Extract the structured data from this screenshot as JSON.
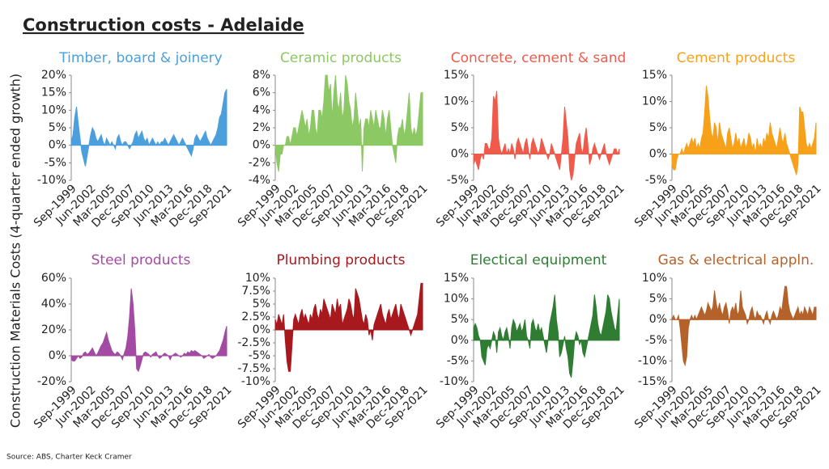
{
  "title": "Construction costs - Adelaide",
  "ylabel": "Construction Materials Costs (4-quarter ended growth)",
  "source": "Source: ABS, Charter Keck Cramer",
  "categories": [
    "Sep-1999",
    null,
    null,
    null,
    null,
    null,
    null,
    null,
    null,
    null,
    null,
    "Jun-2002",
    null,
    null,
    null,
    null,
    null,
    null,
    null,
    null,
    null,
    null,
    "Mar-2005",
    null,
    null,
    null,
    null,
    null,
    null,
    null,
    null,
    null,
    null,
    "Dec-2007",
    null,
    null,
    null,
    null,
    null,
    null,
    null,
    null,
    null,
    null,
    "Sep-2010",
    null,
    null,
    null,
    null,
    null,
    null,
    null,
    null,
    null,
    null,
    "Jun-2013",
    null,
    null,
    null,
    null,
    null,
    null,
    null,
    null,
    null,
    null,
    "Mar-2016",
    null,
    null,
    null,
    null,
    null,
    null,
    null,
    null,
    null,
    null,
    "Dec-2018",
    null,
    null,
    null,
    null,
    null,
    null,
    null,
    null,
    null,
    null,
    "Sep-2021"
  ],
  "chart_data": [
    {
      "type": "area",
      "title": "Timber, board & joinery",
      "color": "#4a9fdc",
      "ylim": [
        -10,
        20
      ],
      "yticks": [
        {
          "value": -10,
          "label": "-10%"
        },
        {
          "value": -5,
          "label": "-5%"
        },
        {
          "value": 0,
          "label": "0%"
        },
        {
          "value": 5,
          "label": "5%"
        },
        {
          "value": 10,
          "label": "10%"
        },
        {
          "value": 15,
          "label": "15%"
        },
        {
          "value": 20,
          "label": "20%"
        }
      ],
      "values": [
        1,
        3,
        8,
        11,
        6,
        2,
        -2,
        -4,
        -6,
        -3,
        0,
        3,
        5,
        4,
        2,
        1,
        2,
        3,
        1,
        0,
        2,
        1,
        0,
        1,
        0,
        -1,
        2,
        3,
        1,
        0,
        1,
        1,
        0,
        -1,
        0,
        1,
        3,
        4,
        2,
        3,
        4,
        2,
        1,
        2,
        0,
        1,
        2,
        1,
        0,
        1,
        0,
        1,
        1,
        2,
        1,
        0,
        1,
        2,
        3,
        2,
        1,
        0,
        1,
        2,
        1,
        0,
        -1,
        -2,
        -3,
        -1,
        2,
        3,
        2,
        1,
        2,
        3,
        4,
        2,
        1,
        0,
        1,
        2,
        3,
        5,
        8,
        9,
        12,
        15,
        16
      ]
    },
    {
      "type": "area",
      "title": "Ceramic products",
      "color": "#8cc864",
      "ylim": [
        -4,
        8
      ],
      "yticks": [
        {
          "value": -4,
          "label": "-4%"
        },
        {
          "value": -2,
          "label": "-2%"
        },
        {
          "value": 0,
          "label": "0%"
        },
        {
          "value": 2,
          "label": "2%"
        },
        {
          "value": 4,
          "label": "4%"
        },
        {
          "value": 6,
          "label": "6%"
        },
        {
          "value": 8,
          "label": "8%"
        }
      ],
      "values": [
        0,
        -2,
        -3,
        -1,
        -1,
        0,
        0,
        1,
        1,
        0,
        1,
        2,
        2,
        1,
        2,
        3,
        4,
        3,
        2,
        3,
        1,
        2,
        4,
        4,
        2,
        1,
        4,
        4,
        3,
        5,
        8,
        8,
        6,
        7,
        3,
        6,
        8,
        5,
        4,
        6,
        3,
        4,
        8,
        7,
        5,
        4,
        2,
        3,
        6,
        4,
        2,
        3,
        -3,
        2,
        3,
        3,
        2,
        4,
        3,
        2,
        4,
        3,
        2,
        2,
        4,
        3,
        1,
        3,
        4,
        2,
        0,
        -1,
        -2,
        1,
        2,
        2,
        3,
        1,
        2,
        4,
        6,
        2,
        1,
        2,
        1,
        2,
        4,
        6,
        6
      ]
    },
    {
      "type": "area",
      "title": "Concrete, cement & sand",
      "color": "#f05a4a",
      "ylim": [
        -5,
        15
      ],
      "yticks": [
        {
          "value": -5,
          "label": "-5%"
        },
        {
          "value": 0,
          "label": "0%"
        },
        {
          "value": 5,
          "label": "5%"
        },
        {
          "value": 10,
          "label": "10%"
        },
        {
          "value": 15,
          "label": "15%"
        }
      ],
      "values": [
        -2,
        -1,
        -2,
        -3,
        -1,
        0,
        -1,
        2,
        2,
        1,
        1,
        3,
        11,
        10,
        12,
        3,
        1,
        0,
        1,
        2,
        0,
        1,
        0,
        2,
        1,
        -1,
        2,
        3,
        2,
        1,
        0,
        2,
        3,
        1,
        -1,
        2,
        3,
        2,
        1,
        0,
        1,
        3,
        2,
        1,
        0,
        -1,
        0,
        2,
        1,
        0,
        -1,
        -2,
        -3,
        0,
        3,
        9,
        6,
        3,
        -3,
        -5,
        -4,
        -1,
        2,
        3,
        4,
        1,
        0,
        3,
        5,
        2,
        -2,
        -1,
        1,
        2,
        1,
        0,
        -1,
        0,
        1,
        2,
        0,
        -1,
        -2,
        -1,
        0,
        1,
        1,
        0,
        1
      ]
    },
    {
      "type": "area",
      "title": "Cement products",
      "color": "#f7a11a",
      "ylim": [
        -5,
        15
      ],
      "yticks": [
        {
          "value": -5,
          "label": "-5%"
        },
        {
          "value": 0,
          "label": "0%"
        },
        {
          "value": 5,
          "label": "5%"
        },
        {
          "value": 10,
          "label": "10%"
        },
        {
          "value": 15,
          "label": "15%"
        }
      ],
      "values": [
        -2,
        -3,
        -3,
        -1,
        0,
        0,
        1,
        0,
        1,
        2,
        1,
        2,
        3,
        2,
        3,
        1,
        2,
        1,
        3,
        4,
        8,
        13,
        11,
        7,
        4,
        3,
        6,
        5,
        2,
        6,
        4,
        3,
        2,
        1,
        4,
        5,
        3,
        1,
        2,
        4,
        2,
        3,
        1,
        2,
        3,
        1,
        2,
        4,
        3,
        1,
        2,
        0,
        3,
        1,
        2,
        1,
        3,
        2,
        4,
        3,
        6,
        4,
        3,
        2,
        1,
        3,
        5,
        3,
        2,
        4,
        2,
        1,
        0,
        -1,
        -2,
        -3,
        -4,
        -2,
        9,
        8,
        8,
        5,
        2,
        1,
        2,
        1,
        2,
        3,
        6
      ]
    },
    {
      "type": "area",
      "title": "Steel products",
      "color": "#a34ba3",
      "ylim": [
        -20,
        60
      ],
      "yticks": [
        {
          "value": -20,
          "label": "-20%"
        },
        {
          "value": 0,
          "label": "0%"
        },
        {
          "value": 20,
          "label": "20%"
        },
        {
          "value": 40,
          "label": "40%"
        },
        {
          "value": 60,
          "label": "60%"
        }
      ],
      "values": [
        -3,
        -4,
        -4,
        -2,
        0,
        -2,
        -1,
        2,
        3,
        1,
        2,
        4,
        6,
        3,
        0,
        2,
        5,
        8,
        10,
        14,
        18,
        12,
        8,
        4,
        2,
        1,
        3,
        2,
        0,
        -3,
        2,
        6,
        15,
        30,
        52,
        40,
        20,
        -10,
        -12,
        -8,
        -3,
        2,
        3,
        2,
        1,
        -1,
        1,
        2,
        3,
        0,
        -2,
        -1,
        1,
        2,
        1,
        0,
        -3,
        0,
        1,
        2,
        1,
        0,
        -1,
        0,
        2,
        1,
        3,
        2,
        4,
        3,
        4,
        3,
        2,
        1,
        0,
        -2,
        -1,
        0,
        1,
        -1,
        -2,
        -1,
        0,
        2,
        4,
        8,
        12,
        18,
        23
      ]
    },
    {
      "type": "area",
      "title": "Plumbing products",
      "color": "#a8191e",
      "ylim": [
        -10,
        10
      ],
      "yticks": [
        {
          "value": -10,
          "label": "-10%"
        },
        {
          "value": -7.5,
          "label": "-7.5%"
        },
        {
          "value": -5,
          "label": "-5%"
        },
        {
          "value": -2.5,
          "label": "-2.5%"
        },
        {
          "value": 0,
          "label": "0%"
        },
        {
          "value": 2.5,
          "label": "2.5%"
        },
        {
          "value": 5,
          "label": "5%"
        },
        {
          "value": 7.5,
          "label": "7.5%"
        },
        {
          "value": 10,
          "label": "10%"
        }
      ],
      "values": [
        2,
        1,
        3,
        2,
        1,
        3,
        -2,
        -6,
        -8,
        -8,
        -3,
        2,
        3,
        2,
        1,
        3,
        4,
        2,
        3,
        2,
        1,
        3,
        2,
        4,
        5,
        3,
        2,
        4,
        3,
        6,
        5,
        4,
        3,
        2,
        5,
        4,
        3,
        6,
        4,
        5,
        1,
        2,
        3,
        4,
        6,
        5,
        3,
        2,
        8,
        7,
        6,
        4,
        2,
        1,
        3,
        2,
        -1,
        0,
        -2,
        1,
        2,
        3,
        4,
        5,
        3,
        2,
        1,
        3,
        4,
        2,
        3,
        4,
        5,
        3,
        2,
        5,
        4,
        3,
        2,
        1,
        0,
        -1,
        0,
        1,
        2,
        3,
        6,
        9,
        9
      ]
    },
    {
      "type": "area",
      "title": "Electical equipment",
      "color": "#2e7d32",
      "ylim": [
        -10,
        15
      ],
      "yticks": [
        {
          "value": -10,
          "label": "-10%"
        },
        {
          "value": -5,
          "label": "-5%"
        },
        {
          "value": 0,
          "label": "0%"
        },
        {
          "value": 5,
          "label": "5%"
        },
        {
          "value": 10,
          "label": "10%"
        },
        {
          "value": 15,
          "label": "15%"
        }
      ],
      "values": [
        3,
        4,
        3,
        1,
        0,
        -4,
        -5,
        -6,
        -2,
        -1,
        -2,
        0,
        2,
        1,
        -3,
        2,
        3,
        1,
        0,
        2,
        3,
        1,
        -2,
        3,
        5,
        4,
        2,
        3,
        4,
        2,
        3,
        5,
        1,
        0,
        -2,
        4,
        5,
        3,
        2,
        4,
        2,
        3,
        1,
        -1,
        -3,
        0,
        4,
        6,
        8,
        11,
        5,
        2,
        -4,
        -3,
        -1,
        1,
        -2,
        -4,
        -8,
        -9,
        -5,
        0,
        2,
        1,
        -1,
        0,
        -3,
        -4,
        -2,
        0,
        2,
        4,
        6,
        11,
        8,
        4,
        2,
        1,
        3,
        5,
        7,
        11,
        10,
        7,
        5,
        3,
        2,
        6,
        10
      ]
    },
    {
      "type": "area",
      "title": "Gas & electrical appln.",
      "color": "#b5622a",
      "ylim": [
        -15,
        10
      ],
      "yticks": [
        {
          "value": -15,
          "label": "-15%"
        },
        {
          "value": -10,
          "label": "-10%"
        },
        {
          "value": -5,
          "label": "-5%"
        },
        {
          "value": 0,
          "label": "0%"
        },
        {
          "value": 5,
          "label": "5%"
        },
        {
          "value": 10,
          "label": "10%"
        }
      ],
      "values": [
        0,
        1,
        0,
        0,
        1,
        -2,
        -6,
        -10,
        -11,
        -9,
        -2,
        0,
        1,
        0,
        1,
        0,
        1,
        2,
        3,
        2,
        1,
        2,
        4,
        3,
        2,
        3,
        7,
        4,
        2,
        4,
        2,
        1,
        3,
        4,
        2,
        -1,
        2,
        3,
        2,
        4,
        1,
        2,
        7,
        3,
        2,
        1,
        -1,
        0,
        2,
        3,
        1,
        0,
        2,
        1,
        1,
        0,
        -1,
        1,
        2,
        0,
        -1,
        1,
        2,
        1,
        0,
        1,
        3,
        2,
        5,
        8,
        8,
        4,
        2,
        1,
        0,
        1,
        2,
        3,
        1,
        2,
        1,
        3,
        2,
        1,
        3,
        2,
        1,
        3,
        3
      ]
    }
  ]
}
